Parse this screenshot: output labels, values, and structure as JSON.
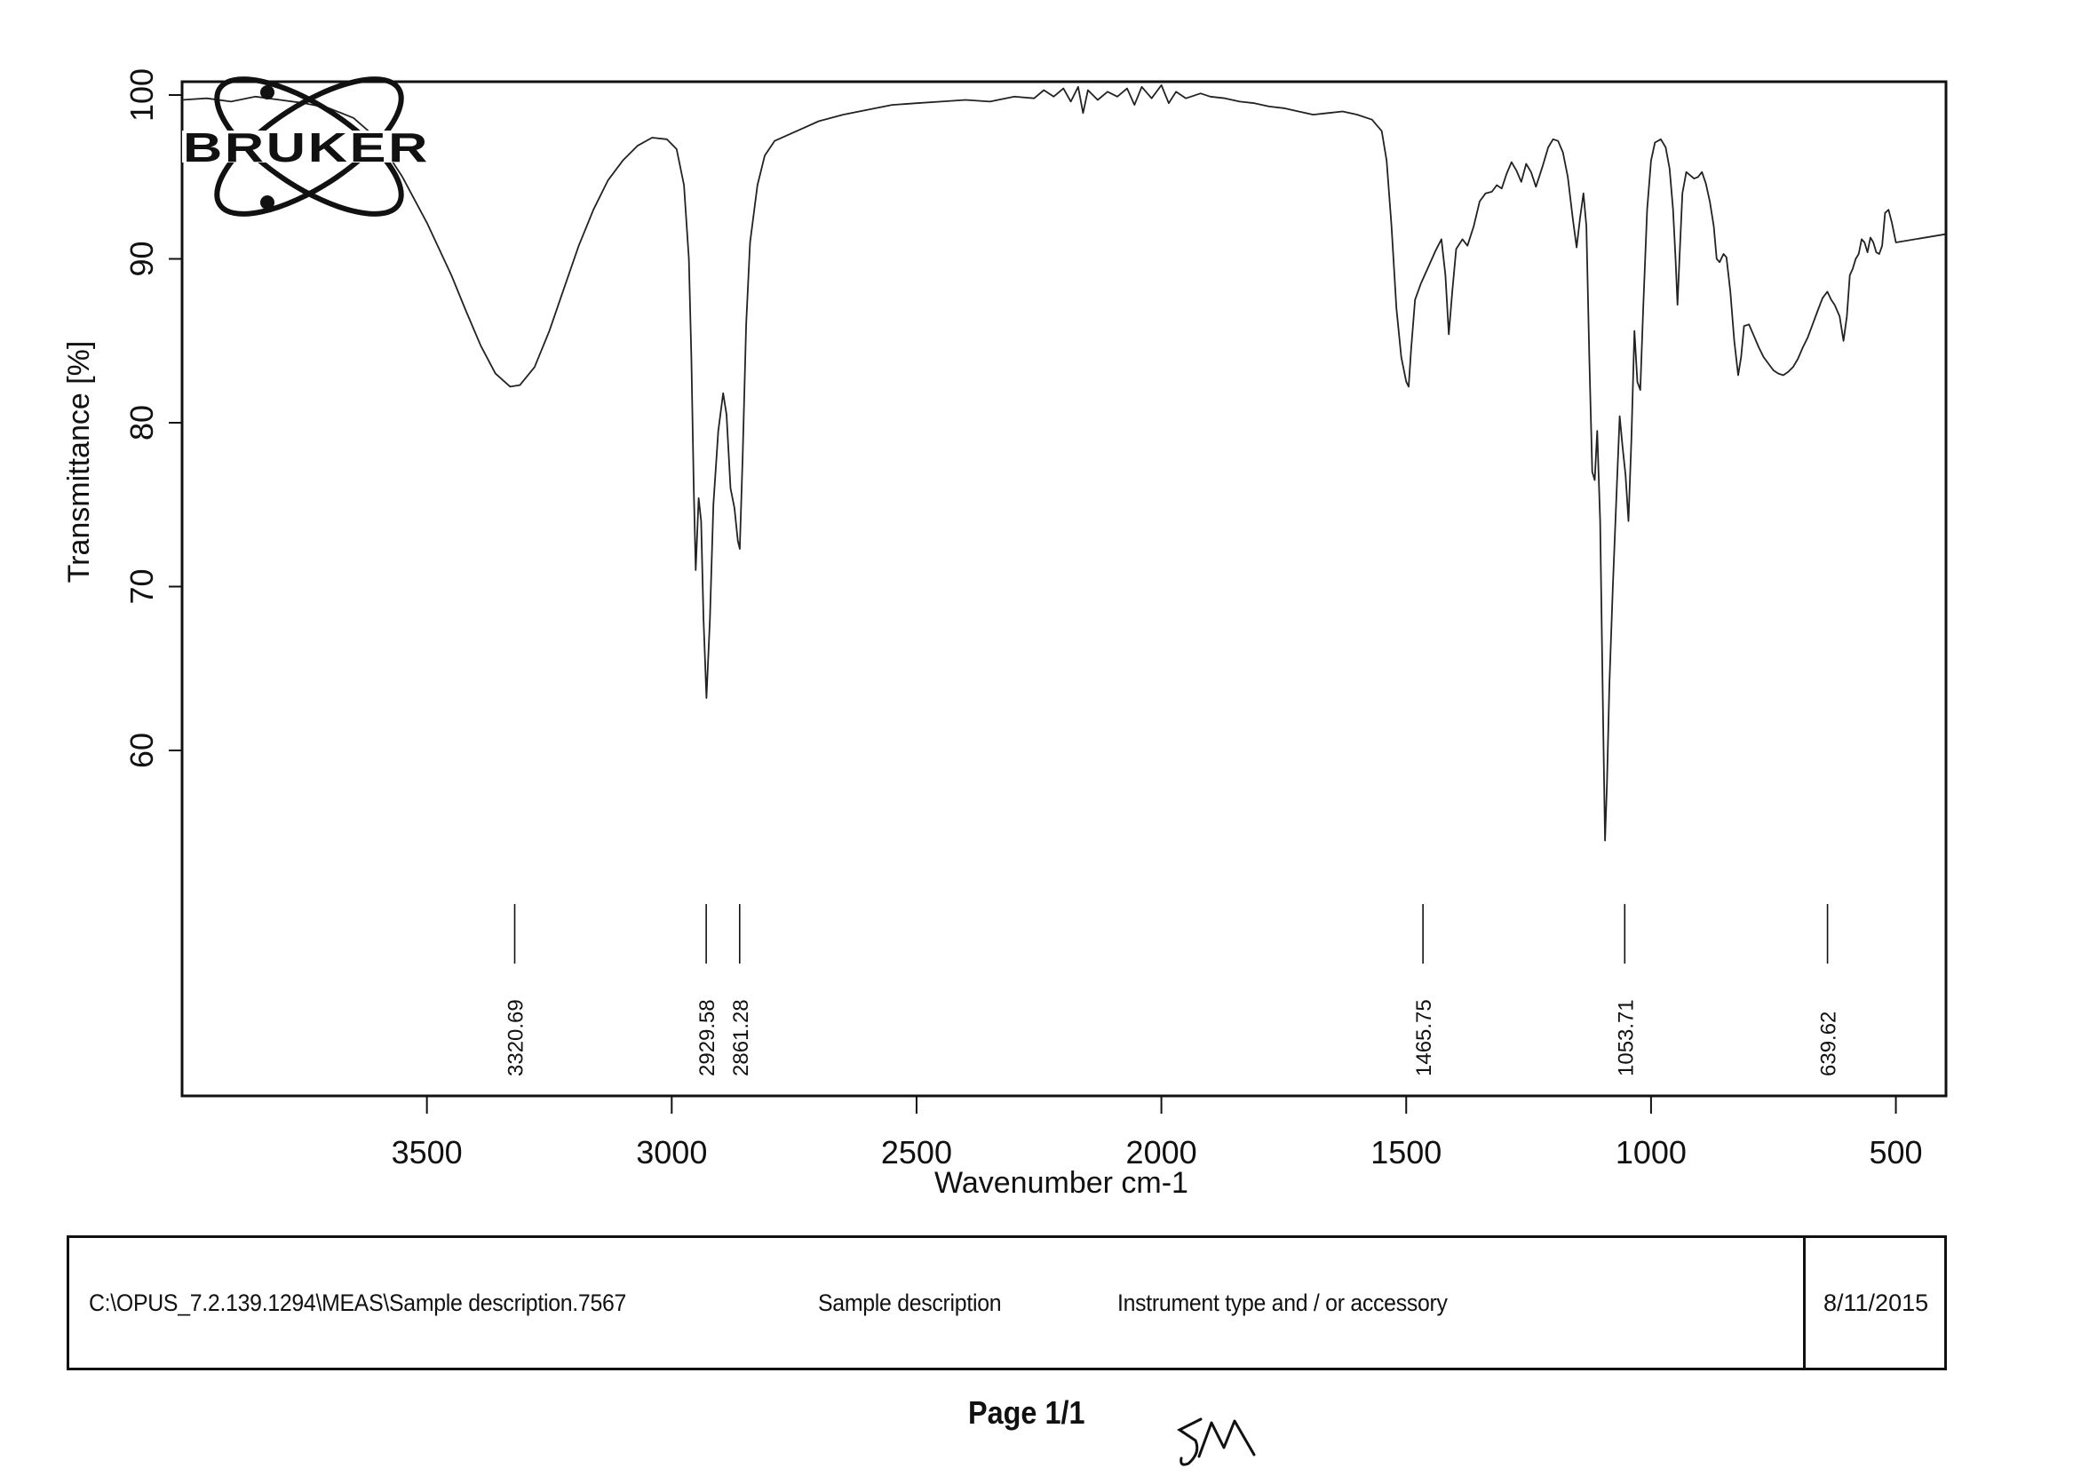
{
  "document": {
    "logo_text": "BRUKER",
    "file_path": "C:\\OPUS_7.2.139.1294\\MEAS\\Sample description.7567",
    "sample_description": "Sample description",
    "instrument": "Instrument type and / or accessory",
    "date": "8/11/2015",
    "page_label": "Page 1/1",
    "handwritten_initials": "SM"
  },
  "chart_data": {
    "type": "line",
    "title": "",
    "xlabel": "Wavenumber cm-1",
    "ylabel": "Transmittance [%]",
    "xlim": [
      4000,
      400
    ],
    "ylim": [
      50,
      101
    ],
    "x_reversed": true,
    "grid": false,
    "legend": null,
    "x_ticks": [
      3500,
      3000,
      2500,
      2000,
      1500,
      1000,
      500
    ],
    "y_ticks": [
      100,
      90,
      80,
      70,
      60
    ],
    "peak_labels": [
      {
        "wavenumber": 3320.69,
        "label": "3320.69"
      },
      {
        "wavenumber": 2929.58,
        "label": "2929.58"
      },
      {
        "wavenumber": 2861.28,
        "label": "2861.28"
      },
      {
        "wavenumber": 1465.75,
        "label": "1465.75"
      },
      {
        "wavenumber": 1053.71,
        "label": "1053.71"
      },
      {
        "wavenumber": 639.62,
        "label": "639.62"
      }
    ],
    "series": [
      {
        "name": "Transmittance",
        "color": "#222222",
        "points": [
          [
            4000,
            99.7
          ],
          [
            3950,
            99.8
          ],
          [
            3900,
            99.6
          ],
          [
            3850,
            99.9
          ],
          [
            3800,
            99.7
          ],
          [
            3750,
            99.5
          ],
          [
            3700,
            99.2
          ],
          [
            3650,
            98.6
          ],
          [
            3600,
            97.3
          ],
          [
            3550,
            95.0
          ],
          [
            3500,
            92.2
          ],
          [
            3450,
            89.0
          ],
          [
            3420,
            86.8
          ],
          [
            3390,
            84.7
          ],
          [
            3360,
            83.0
          ],
          [
            3330,
            82.2
          ],
          [
            3310,
            82.3
          ],
          [
            3280,
            83.4
          ],
          [
            3250,
            85.6
          ],
          [
            3220,
            88.2
          ],
          [
            3190,
            90.8
          ],
          [
            3160,
            93.0
          ],
          [
            3130,
            94.8
          ],
          [
            3100,
            96.0
          ],
          [
            3070,
            96.9
          ],
          [
            3040,
            97.4
          ],
          [
            3010,
            97.3
          ],
          [
            2990,
            96.7
          ],
          [
            2975,
            94.5
          ],
          [
            2965,
            90.0
          ],
          [
            2960,
            84.0
          ],
          [
            2955,
            76.0
          ],
          [
            2951,
            71.0
          ],
          [
            2945,
            75.4
          ],
          [
            2940,
            74.0
          ],
          [
            2935,
            68.0
          ],
          [
            2929,
            63.2
          ],
          [
            2922,
            68.0
          ],
          [
            2915,
            75.0
          ],
          [
            2905,
            79.5
          ],
          [
            2895,
            81.8
          ],
          [
            2888,
            80.5
          ],
          [
            2880,
            76.0
          ],
          [
            2872,
            74.8
          ],
          [
            2865,
            72.8
          ],
          [
            2861,
            72.3
          ],
          [
            2855,
            78.0
          ],
          [
            2848,
            86.0
          ],
          [
            2840,
            91.0
          ],
          [
            2825,
            94.5
          ],
          [
            2810,
            96.3
          ],
          [
            2790,
            97.2
          ],
          [
            2760,
            97.6
          ],
          [
            2730,
            98.0
          ],
          [
            2700,
            98.4
          ],
          [
            2650,
            98.8
          ],
          [
            2600,
            99.1
          ],
          [
            2550,
            99.4
          ],
          [
            2500,
            99.5
          ],
          [
            2450,
            99.6
          ],
          [
            2400,
            99.7
          ],
          [
            2350,
            99.6
          ],
          [
            2300,
            99.9
          ],
          [
            2260,
            99.8
          ],
          [
            2240,
            100.3
          ],
          [
            2220,
            99.9
          ],
          [
            2200,
            100.4
          ],
          [
            2185,
            99.6
          ],
          [
            2170,
            100.5
          ],
          [
            2160,
            98.9
          ],
          [
            2150,
            100.3
          ],
          [
            2130,
            99.7
          ],
          [
            2110,
            100.2
          ],
          [
            2090,
            99.9
          ],
          [
            2070,
            100.4
          ],
          [
            2055,
            99.4
          ],
          [
            2040,
            100.5
          ],
          [
            2020,
            99.8
          ],
          [
            2000,
            100.6
          ],
          [
            1985,
            99.5
          ],
          [
            1970,
            100.2
          ],
          [
            1950,
            99.8
          ],
          [
            1920,
            100.1
          ],
          [
            1900,
            99.9
          ],
          [
            1870,
            99.8
          ],
          [
            1840,
            99.6
          ],
          [
            1810,
            99.5
          ],
          [
            1780,
            99.3
          ],
          [
            1750,
            99.2
          ],
          [
            1720,
            99.0
          ],
          [
            1690,
            98.8
          ],
          [
            1660,
            98.9
          ],
          [
            1630,
            99.0
          ],
          [
            1600,
            98.8
          ],
          [
            1570,
            98.5
          ],
          [
            1550,
            97.8
          ],
          [
            1540,
            96.0
          ],
          [
            1530,
            92.0
          ],
          [
            1520,
            87.0
          ],
          [
            1510,
            84.0
          ],
          [
            1500,
            82.5
          ],
          [
            1495,
            82.2
          ],
          [
            1490,
            84.5
          ],
          [
            1482,
            87.5
          ],
          [
            1470,
            88.5
          ],
          [
            1455,
            89.5
          ],
          [
            1440,
            90.5
          ],
          [
            1428,
            91.2
          ],
          [
            1420,
            89.0
          ],
          [
            1413,
            85.4
          ],
          [
            1406,
            88.0
          ],
          [
            1398,
            90.6
          ],
          [
            1385,
            91.2
          ],
          [
            1375,
            90.8
          ],
          [
            1362,
            92.0
          ],
          [
            1350,
            93.5
          ],
          [
            1338,
            94.0
          ],
          [
            1325,
            94.1
          ],
          [
            1315,
            94.5
          ],
          [
            1305,
            94.3
          ],
          [
            1295,
            95.2
          ],
          [
            1285,
            95.9
          ],
          [
            1275,
            95.4
          ],
          [
            1265,
            94.7
          ],
          [
            1255,
            95.8
          ],
          [
            1245,
            95.3
          ],
          [
            1235,
            94.4
          ],
          [
            1222,
            95.6
          ],
          [
            1210,
            96.8
          ],
          [
            1200,
            97.3
          ],
          [
            1190,
            97.2
          ],
          [
            1180,
            96.5
          ],
          [
            1170,
            95.0
          ],
          [
            1160,
            92.5
          ],
          [
            1152,
            90.7
          ],
          [
            1145,
            92.5
          ],
          [
            1138,
            94.0
          ],
          [
            1132,
            92.0
          ],
          [
            1126,
            84.0
          ],
          [
            1120,
            77.0
          ],
          [
            1115,
            76.5
          ],
          [
            1110,
            79.5
          ],
          [
            1104,
            74.0
          ],
          [
            1098,
            62.0
          ],
          [
            1094,
            54.5
          ],
          [
            1090,
            58.0
          ],
          [
            1085,
            64.0
          ],
          [
            1078,
            70.0
          ],
          [
            1070,
            76.0
          ],
          [
            1064,
            80.4
          ],
          [
            1058,
            78.5
          ],
          [
            1052,
            76.8
          ],
          [
            1046,
            74.0
          ],
          [
            1040,
            79.0
          ],
          [
            1034,
            85.6
          ],
          [
            1028,
            82.5
          ],
          [
            1022,
            82.0
          ],
          [
            1016,
            87.0
          ],
          [
            1008,
            93.0
          ],
          [
            1000,
            96.0
          ],
          [
            992,
            97.1
          ],
          [
            980,
            97.3
          ],
          [
            970,
            96.8
          ],
          [
            962,
            95.5
          ],
          [
            955,
            93.0
          ],
          [
            950,
            90.0
          ],
          [
            946,
            87.2
          ],
          [
            942,
            90.0
          ],
          [
            936,
            94.0
          ],
          [
            928,
            95.3
          ],
          [
            920,
            95.1
          ],
          [
            912,
            94.9
          ],
          [
            904,
            95.0
          ],
          [
            896,
            95.3
          ],
          [
            888,
            94.6
          ],
          [
            880,
            93.5
          ],
          [
            872,
            92.0
          ],
          [
            866,
            90.0
          ],
          [
            860,
            89.8
          ],
          [
            852,
            90.3
          ],
          [
            846,
            90.1
          ],
          [
            838,
            88.0
          ],
          [
            830,
            85.0
          ],
          [
            822,
            82.9
          ],
          [
            816,
            84.0
          ],
          [
            810,
            85.9
          ],
          [
            800,
            86.0
          ],
          [
            790,
            85.3
          ],
          [
            780,
            84.6
          ],
          [
            770,
            84.0
          ],
          [
            760,
            83.6
          ],
          [
            750,
            83.2
          ],
          [
            740,
            83.0
          ],
          [
            730,
            82.9
          ],
          [
            720,
            83.1
          ],
          [
            710,
            83.4
          ],
          [
            700,
            83.9
          ],
          [
            690,
            84.6
          ],
          [
            680,
            85.2
          ],
          [
            670,
            86.0
          ],
          [
            660,
            86.8
          ],
          [
            650,
            87.6
          ],
          [
            640,
            88.0
          ],
          [
            632,
            87.5
          ],
          [
            625,
            87.2
          ],
          [
            615,
            86.5
          ],
          [
            607,
            85.0
          ],
          [
            600,
            86.5
          ],
          [
            594,
            89.0
          ],
          [
            588,
            89.4
          ],
          [
            582,
            90.0
          ],
          [
            576,
            90.3
          ],
          [
            570,
            91.2
          ],
          [
            564,
            91.0
          ],
          [
            558,
            90.4
          ],
          [
            552,
            91.3
          ],
          [
            546,
            91.0
          ],
          [
            540,
            90.4
          ],
          [
            534,
            90.3
          ],
          [
            528,
            90.8
          ],
          [
            522,
            92.8
          ],
          [
            515,
            93.0
          ],
          [
            508,
            92.2
          ],
          [
            500,
            91.0
          ]
        ]
      }
    ]
  }
}
